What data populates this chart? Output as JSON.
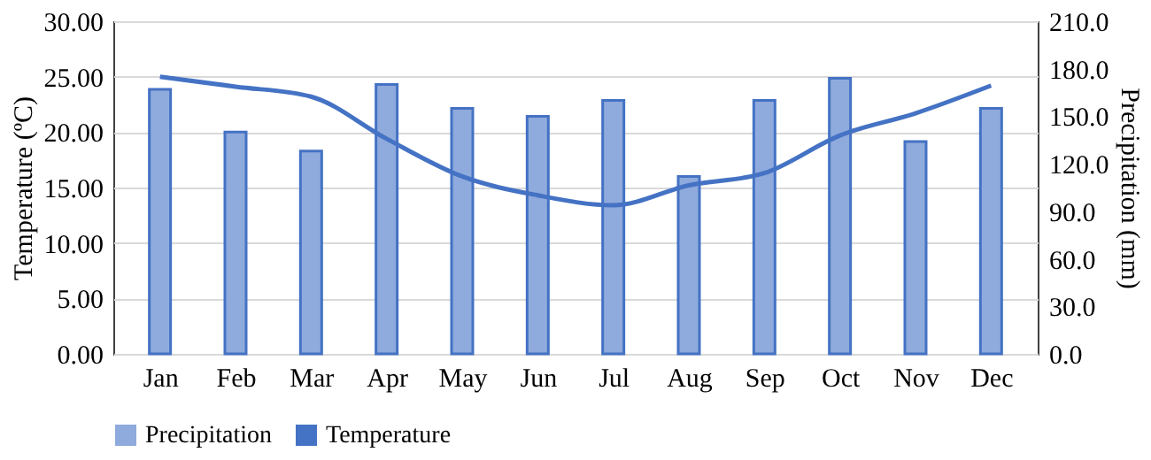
{
  "chart_data": {
    "type": "bar",
    "categories": [
      "Jan",
      "Feb",
      "Mar",
      "Apr",
      "May",
      "Jun",
      "Jul",
      "Aug",
      "Sep",
      "Oct",
      "Nov",
      "Dec"
    ],
    "series": [
      {
        "name": "Precipitation",
        "axis": "y2",
        "color": "#8faadc",
        "values": [
          167,
          140,
          128,
          170,
          155,
          150,
          160,
          112,
          160,
          174,
          134,
          155
        ]
      },
      {
        "name": "Temperature",
        "type": "line",
        "color": "#4472c4",
        "values": [
          25.0,
          24.1,
          23.2,
          19.4,
          16.0,
          14.3,
          13.4,
          15.2,
          16.3,
          19.7,
          21.7,
          24.2
        ]
      }
    ],
    "ylabel": "Temperature (ºC)",
    "y2label": "Precipitation (mm)",
    "ylim": [
      0,
      30
    ],
    "yticks": [
      {
        "value": 0,
        "label": "0.00"
      },
      {
        "value": 5,
        "label": "5.00"
      },
      {
        "value": 10,
        "label": "10.00"
      },
      {
        "value": 15,
        "label": "15.00"
      },
      {
        "value": 20,
        "label": "20.00"
      },
      {
        "value": 25,
        "label": "25.00"
      },
      {
        "value": 30,
        "label": "30.00"
      }
    ],
    "y2lim": [
      0,
      210
    ],
    "y2ticks": [
      {
        "value": 0,
        "label": "0.0"
      },
      {
        "value": 30,
        "label": "30.0"
      },
      {
        "value": 60,
        "label": "60.0"
      },
      {
        "value": 90,
        "label": "90.0"
      },
      {
        "value": 120,
        "label": "120.0"
      },
      {
        "value": 150,
        "label": "150.0"
      },
      {
        "value": 180,
        "label": "180.0"
      },
      {
        "value": 210,
        "label": "210.0"
      }
    ],
    "grid": "y",
    "legend": "bottom",
    "marker": "none",
    "line_style": "solid"
  }
}
